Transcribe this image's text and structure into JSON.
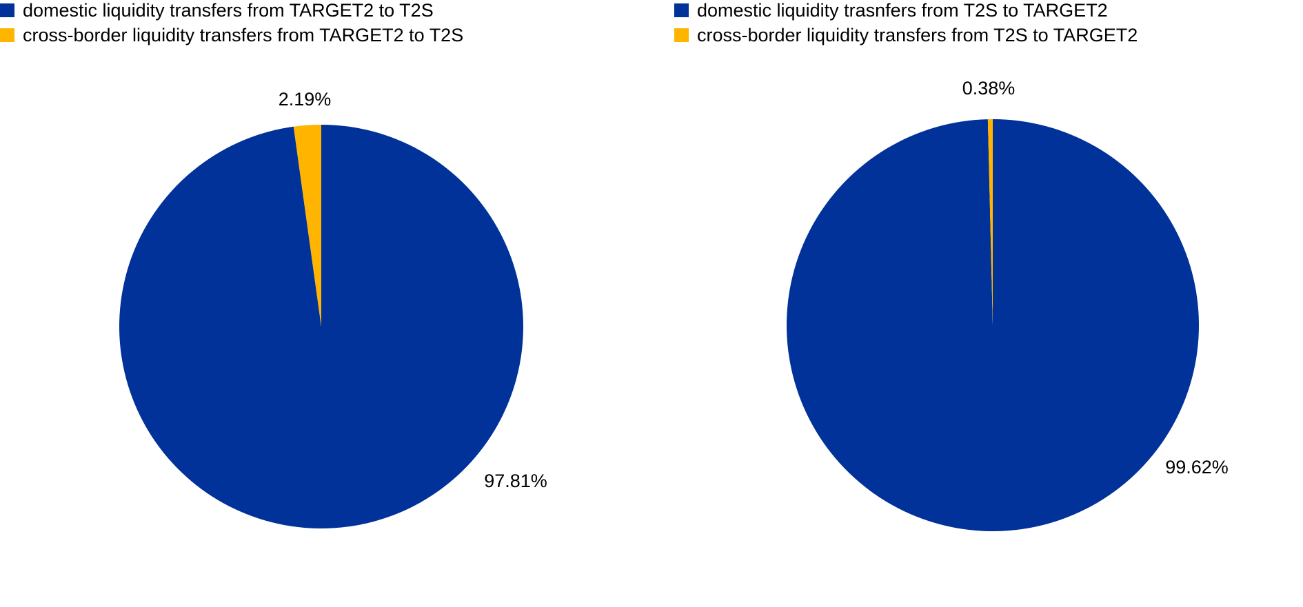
{
  "chart_data": [
    {
      "type": "pie",
      "categories": [
        "domestic liquidity transfers from TARGET2 to T2S",
        "cross-border liquidity transfers from TARGET2 to T2S"
      ],
      "values": [
        97.81,
        2.19
      ],
      "value_labels": [
        "97.81%",
        "2.19%"
      ],
      "colors": [
        "#003299",
        "#ffb400"
      ]
    },
    {
      "type": "pie",
      "categories": [
        "domestic liquidity trasnfers from T2S to TARGET2",
        "cross-border liquidity transfers from T2S to TARGET2"
      ],
      "values": [
        99.62,
        0.38
      ],
      "value_labels": [
        "99.62%",
        "0.38%"
      ],
      "colors": [
        "#003299",
        "#ffb400"
      ]
    }
  ]
}
